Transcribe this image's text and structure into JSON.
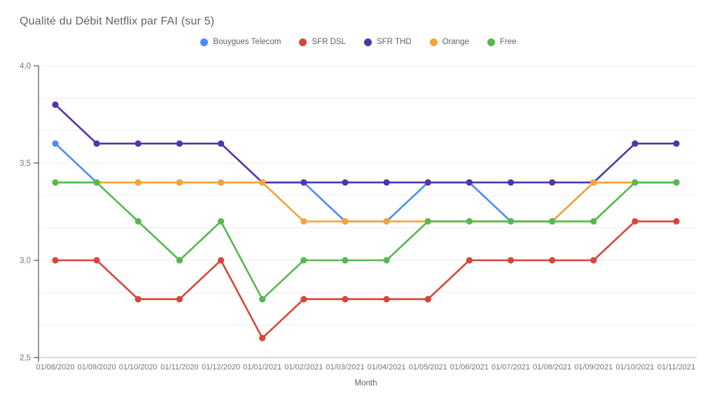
{
  "title": "Qualité du Débit Netflix par FAI (sur 5)",
  "chart_data": {
    "type": "line",
    "title": "Qualité du Débit Netflix par FAI (sur 5)",
    "xlabel": "Month",
    "ylabel": "",
    "ylim": [
      2.5,
      4.0
    ],
    "ytick_values": [
      4.0,
      3.5,
      3.0,
      2.5
    ],
    "ytick_labels": [
      "4,0",
      "3,5",
      "3,0",
      "2,5"
    ],
    "grid": "horizontal, light minor lines at thirds of each 0.5 step",
    "legend_position": "top-center",
    "categories": [
      "01/08/2020",
      "01/09/2020",
      "01/10/2020",
      "01/11/2020",
      "01/12/2020",
      "01/01/2021",
      "01/02/2021",
      "01/03/2021",
      "01/04/2021",
      "01/05/2021",
      "01/06/2021",
      "01/07/2021",
      "01/08/2021",
      "01/09/2021",
      "01/10/2021",
      "01/11/2021"
    ],
    "series": [
      {
        "name": "Bouygues Telecom",
        "color": "#4C8BF5",
        "values": [
          3.6,
          3.4,
          3.4,
          3.4,
          3.4,
          3.4,
          3.4,
          3.2,
          3.2,
          3.4,
          3.4,
          3.2,
          3.2,
          3.4,
          3.4,
          3.4
        ]
      },
      {
        "name": "SFR DSL",
        "color": "#D6463B",
        "values": [
          3.0,
          3.0,
          2.8,
          2.8,
          3.0,
          2.6,
          2.8,
          2.8,
          2.8,
          2.8,
          3.0,
          3.0,
          3.0,
          3.0,
          3.2,
          3.2
        ]
      },
      {
        "name": "SFR THD",
        "color": "#5434A8",
        "values": [
          3.8,
          3.6,
          3.6,
          3.6,
          3.6,
          3.4,
          3.4,
          3.4,
          3.4,
          3.4,
          3.4,
          3.4,
          3.4,
          3.4,
          3.6,
          3.6
        ]
      },
      {
        "name": "Orange",
        "color": "#F5A33B",
        "values": [
          3.4,
          3.4,
          3.4,
          3.4,
          3.4,
          3.4,
          3.2,
          3.2,
          3.2,
          3.2,
          3.2,
          3.2,
          3.2,
          3.4,
          3.4,
          3.4
        ]
      },
      {
        "name": "Free",
        "color": "#55B94E",
        "values": [
          3.4,
          3.4,
          3.2,
          3.0,
          3.2,
          2.8,
          3.0,
          3.0,
          3.0,
          3.2,
          3.2,
          3.2,
          3.2,
          3.2,
          3.4,
          3.4
        ]
      }
    ],
    "axis_colors": {
      "axis_line": "#616161",
      "baseline": "#c2c2c2",
      "gridline": "#efefef",
      "tick_label": "#757575",
      "axis_title": "#616161"
    }
  }
}
